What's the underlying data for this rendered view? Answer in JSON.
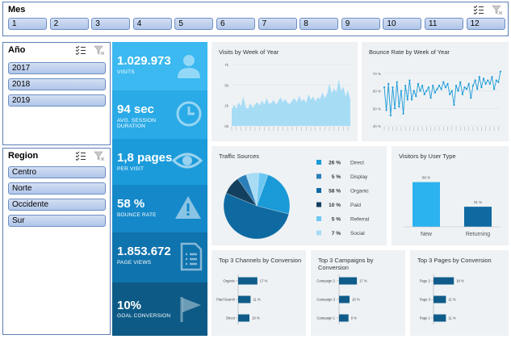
{
  "mes_slicer": {
    "title": "Mes",
    "months": [
      "1",
      "2",
      "3",
      "4",
      "5",
      "6",
      "7",
      "8",
      "9",
      "10",
      "11",
      "12"
    ]
  },
  "ano_slicer": {
    "title": "Año",
    "items": [
      "2017",
      "2018",
      "2019"
    ]
  },
  "region_slicer": {
    "title": "Region",
    "items": [
      "Centro",
      "Norte",
      "Occidente",
      "Sur"
    ]
  },
  "kpis": [
    {
      "value": "1.029.973",
      "label": "VISITS",
      "label2": "",
      "color": "#3bb9f0",
      "icon": "user-icon"
    },
    {
      "value": "94 sec",
      "label": "AVG. SESSION",
      "label2": "DURATION",
      "color": "#2aaae6",
      "icon": "clock-icon"
    },
    {
      "value": "1,8 pages",
      "label": "PER VISIT",
      "label2": "",
      "color": "#1c9bdb",
      "icon": "eye-icon"
    },
    {
      "value": "58 %",
      "label": "BOUNCE RATE",
      "label2": "",
      "color": "#1488c9",
      "icon": "warning-icon"
    },
    {
      "value": "1.853.672",
      "label": "PAGE VIEWS",
      "label2": "",
      "color": "#0f73ad",
      "icon": "document-icon"
    },
    {
      "value": "10%",
      "label": "GOAL CONVERSION",
      "label2": "",
      "color": "#0d5a86",
      "icon": "flag-icon"
    }
  ],
  "visits_chart": {
    "title": "Visits by Week of Year",
    "color": "#a7dcf5",
    "chart_data": {
      "type": "area",
      "title": "Visits by Week of Year",
      "ylim": [
        0,
        7.5
      ],
      "yticks": [
        "0k",
        "2k",
        "5k",
        "7k"
      ],
      "values": [
        2.0,
        2.6,
        2.1,
        2.9,
        2.4,
        3.6,
        2.3,
        2.1,
        2.8,
        2.2,
        2.6,
        2.9,
        2.5,
        3.1,
        2.6,
        3.4,
        2.7,
        2.8,
        3.2,
        2.6,
        3.0,
        3.5,
        2.9,
        3.3,
        2.8,
        2.7,
        3.1,
        3.4,
        2.9,
        3.7,
        3.0,
        3.3,
        2.8,
        3.9,
        3.2,
        3.6,
        3.0,
        3.5,
        3.3,
        4.1,
        3.4,
        3.9,
        5.2,
        4.0,
        4.6,
        4.1,
        5.7,
        4.3,
        4.8,
        3.6,
        4.4,
        3.2
      ]
    }
  },
  "bounce_chart": {
    "title": "Bounce Rate by Week of Year",
    "color": "#1a9ad6",
    "chart_data": {
      "type": "line",
      "title": "Bounce Rate by Week of Year",
      "ylim": [
        40,
        75
      ],
      "yticks": [
        "40 %",
        "50 %",
        "60 %",
        "70 %"
      ],
      "values": [
        62,
        49,
        64,
        46,
        62,
        50,
        65,
        51,
        60,
        47,
        63,
        55,
        66,
        55,
        60,
        57,
        64,
        60,
        63,
        58,
        60,
        62,
        56,
        63,
        59,
        61,
        63,
        61,
        65,
        62,
        64,
        58,
        60,
        52,
        63,
        60,
        65,
        58,
        62,
        61,
        64,
        56,
        63,
        66,
        61,
        68,
        62,
        67,
        64,
        66,
        64,
        68,
        61,
        66,
        65,
        71
      ]
    }
  },
  "traffic_sources": {
    "title": "Traffic Sources",
    "chart_data": {
      "type": "pie",
      "title": "Traffic Sources",
      "slices": [
        {
          "label": "Direct",
          "pct": "26 %",
          "value": 26,
          "color": "#1a9ad6"
        },
        {
          "label": "Display",
          "pct": "5 %",
          "value": 5,
          "color": "#2b7fb8"
        },
        {
          "label": "Organic",
          "pct": "58 %",
          "value": 58,
          "color": "#0f6aa1"
        },
        {
          "label": "Paid",
          "pct": "10 %",
          "value": 10,
          "color": "#13405e"
        },
        {
          "label": "Referral",
          "pct": "5 %",
          "value": 5,
          "color": "#6cc8f2"
        },
        {
          "label": "Social",
          "pct": "7 %",
          "value": 7,
          "color": "#a8dcf5"
        }
      ]
    }
  },
  "visitors_type": {
    "title": "Visitors by User Type",
    "chart_data": {
      "type": "bar",
      "title": "Visitors by User Type",
      "categories": [
        "New",
        "Returning"
      ],
      "values": [
        69,
        31
      ],
      "labels": [
        "69 %",
        "31 %"
      ],
      "colors": [
        "#2bb3ef",
        "#0f6aa1"
      ],
      "ylim": [
        0,
        100
      ]
    }
  },
  "top_channels": {
    "title": "Top 3 Channels by Conversion",
    "chart_data": {
      "type": "bar",
      "title": "Top 3 Channels by Conversion",
      "categories": [
        "Organic",
        "Paid Search",
        "Direct"
      ],
      "values": [
        17,
        11,
        10
      ],
      "labels": [
        "17 %",
        "11 %",
        "10 %"
      ],
      "xlim": [
        0,
        20
      ]
    }
  },
  "top_campaigns": {
    "title": "Top 3 Campaigns by Conversion",
    "chart_data": {
      "type": "bar",
      "title": "Top 3 Campaigns by Conversion",
      "categories": [
        "Campaign 2",
        "Campaign 3",
        "Campaign 1"
      ],
      "values": [
        17,
        10,
        9
      ],
      "labels": [
        "17 %",
        "10 %",
        "9 %"
      ],
      "xlim": [
        0,
        20
      ]
    }
  },
  "top_pages": {
    "title": "Top 3 Pages by Conversion",
    "chart_data": {
      "type": "bar",
      "title": "Top 3 Pages by Conversion",
      "categories": [
        "Page 2",
        "Page 3",
        "Page 1"
      ],
      "values": [
        18,
        11,
        11
      ],
      "labels": [
        "18 %",
        "11 %",
        "11 %"
      ],
      "xlim": [
        0,
        20
      ]
    }
  },
  "colors": {
    "slicer_border": "#5b7fb5",
    "panel_bg": "#eef2f5",
    "bar_dark": "#0f5c8a"
  }
}
